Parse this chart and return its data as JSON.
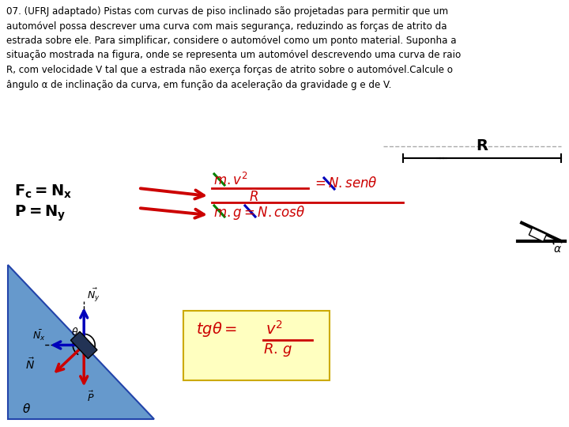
{
  "bg_color": "#ffffff",
  "text_color": "#000000",
  "red_color": "#cc0000",
  "blue_color": "#0000bb",
  "green_color": "#008000",
  "yellow_bg": "#ffffc0",
  "yellow_edge": "#ccaa00",
  "ramp_color": "#6699cc",
  "ramp_edge": "#2244aa",
  "arrow_red": "#cc0000",
  "arrow_blue": "#0000bb",
  "paragraph": "07. (UFRJ adaptado) Pistas com curvas de piso inclinado são projetadas para permitir que um\nautomóvel possa descrever uma curva com mais segurança, reduzindo as forças de atrito da\nestrada sobre ele. Para simplificar, considere o automóvel como um ponto material. Suponha a\nsituação mostrada na figura, onde se representa um automóvel descrevendo uma curva de raio\nR, com velocidade V tal que a estrada não exerça forças de atrito sobre o automóvel.Calcule o\nângulo α de inclinação da curva, em função da aceleração da gravidade g e de V."
}
